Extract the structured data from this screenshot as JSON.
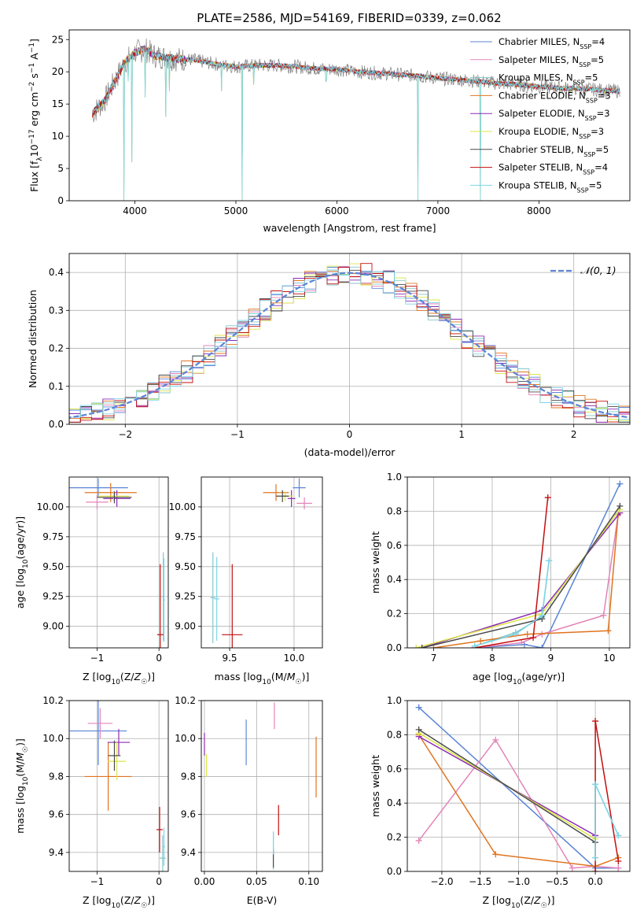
{
  "title": "PLATE=2586, MJD=54169, FIBERID=0339, z=0.062",
  "models": [
    {
      "name": "Chabrier MILES",
      "nssp": "4",
      "color": "#5b85d6"
    },
    {
      "name": "Salpeter MILES",
      "nssp": "5",
      "color": "#e384b8"
    },
    {
      "name": "Kroupa MILES",
      "nssp": "5",
      "color": "#86c5c8"
    },
    {
      "name": "Chabrier ELODIE",
      "nssp": "3",
      "color": "#e0741f"
    },
    {
      "name": "Salpeter ELODIE",
      "nssp": "3",
      "color": "#8b2bb5"
    },
    {
      "name": "Kroupa ELODIE",
      "nssp": "3",
      "color": "#dce64a"
    },
    {
      "name": "Chabrier STELIB",
      "nssp": "5",
      "color": "#4a4a4a"
    },
    {
      "name": "Salpeter STELIB",
      "nssp": "4",
      "color": "#c40e0e"
    },
    {
      "name": "Kroupa STELIB",
      "nssp": "5",
      "color": "#7dd5e8"
    }
  ],
  "chart_data": [
    {
      "id": "spectrum",
      "type": "line",
      "xlabel": "wavelength [Angstrom, rest frame]",
      "ylabel": "Flux [f_λ 10^-17 erg cm^-2 s^-1 A^-1]",
      "xlim": [
        3350,
        8900
      ],
      "ylim": [
        0,
        26.5
      ],
      "xticks": [
        4000,
        5000,
        6000,
        7000,
        8000
      ],
      "yticks": [
        0,
        5,
        10,
        15,
        20,
        25
      ],
      "data_color": "#808080",
      "continuum": [
        [
          3580,
          13.5
        ],
        [
          3700,
          15.5
        ],
        [
          3800,
          18.5
        ],
        [
          3900,
          21.5
        ],
        [
          4000,
          23
        ],
        [
          4100,
          23.5
        ],
        [
          4200,
          22.5
        ],
        [
          4400,
          22
        ],
        [
          4600,
          21.8
        ],
        [
          4800,
          21.2
        ],
        [
          5000,
          20.8
        ],
        [
          5200,
          21
        ],
        [
          5400,
          21
        ],
        [
          5600,
          20.8
        ],
        [
          5800,
          20.5
        ],
        [
          6000,
          20.4
        ],
        [
          6200,
          20
        ],
        [
          6400,
          19.8
        ],
        [
          6600,
          19.6
        ],
        [
          6800,
          19.4
        ],
        [
          7000,
          19
        ],
        [
          7200,
          18.8
        ],
        [
          7400,
          18.5
        ],
        [
          7600,
          18.2
        ],
        [
          7800,
          18
        ],
        [
          8000,
          17.7
        ],
        [
          8200,
          17.5
        ],
        [
          8400,
          17.4
        ],
        [
          8600,
          17.2
        ],
        [
          8800,
          17
        ]
      ],
      "absorption": [
        [
          3890,
          0
        ],
        [
          3935,
          18.5
        ],
        [
          3970,
          6
        ],
        [
          4100,
          16
        ],
        [
          4305,
          13
        ],
        [
          4340,
          17
        ],
        [
          4860,
          17
        ],
        [
          5060,
          0
        ],
        [
          5175,
          18
        ],
        [
          5893,
          18.5
        ],
        [
          6800,
          0
        ],
        [
          7420,
          0
        ]
      ],
      "grid": false,
      "legend": "top-right"
    },
    {
      "id": "residuals",
      "type": "step",
      "xlabel": "(data-model)/error",
      "ylabel": "Normed distribution",
      "xlim": [
        -2.5,
        2.5
      ],
      "ylim": [
        0,
        0.45
      ],
      "xticks": [
        -2,
        -1,
        0,
        1,
        2
      ],
      "yticks": [
        0.0,
        0.1,
        0.2,
        0.3,
        0.4
      ],
      "gaussian_label": "𝒩(0, 1)",
      "gaussian_color": "#5b85d6",
      "bin_width": 0.1,
      "grid": true,
      "legend": "top-right"
    },
    {
      "id": "age-Z",
      "type": "errorbar",
      "xlabel": "Z [log10(Z/Z☉)]",
      "ylabel": "age  [log10(age/yr)]",
      "xlim": [
        -1.45,
        0.15
      ],
      "ylim": [
        8.82,
        10.25
      ],
      "xticks": [
        -1,
        0
      ],
      "yticks": [
        9.0,
        9.25,
        9.5,
        9.75,
        10.0
      ],
      "points": [
        {
          "x": -0.98,
          "y": 10.16,
          "xerr": 0.48,
          "yerr": 0.08,
          "model": 0
        },
        {
          "x": -1.0,
          "y": 10.04,
          "xerr": 0.18,
          "yerr": 0.06,
          "model": 1
        },
        {
          "x": 0.07,
          "y": 9.25,
          "xerr": 0.02,
          "yerr": 0.37,
          "model": 2
        },
        {
          "x": -0.78,
          "y": 10.12,
          "xerr": 0.42,
          "yerr": 0.08,
          "model": 3
        },
        {
          "x": -0.68,
          "y": 10.07,
          "xerr": 0.22,
          "yerr": 0.07,
          "model": 4
        },
        {
          "x": -0.73,
          "y": 10.09,
          "xerr": 0.25,
          "yerr": 0.04,
          "model": 5
        },
        {
          "x": -0.72,
          "y": 10.08,
          "xerr": 0.28,
          "yerr": 0.05,
          "model": 6
        },
        {
          "x": 0.02,
          "y": 8.93,
          "xerr": 0.05,
          "yerr": 0.59,
          "model": 7
        },
        {
          "x": 0.08,
          "y": 9.22,
          "xerr": 0.02,
          "yerr": 0.35,
          "model": 8
        }
      ],
      "grid": true
    },
    {
      "id": "age-mass",
      "type": "errorbar",
      "xlabel": "mass [log10(M/M☉)]",
      "ylabel": "",
      "xlim": [
        9.28,
        10.22
      ],
      "ylim": [
        8.82,
        10.25
      ],
      "xticks": [
        9.5,
        10.0
      ],
      "yticks": [
        9.0,
        9.25,
        9.5,
        9.75,
        10.0
      ],
      "points": [
        {
          "x": 10.04,
          "y": 10.16,
          "xerr": 0.05,
          "yerr": 0.08,
          "model": 0
        },
        {
          "x": 10.08,
          "y": 10.03,
          "xerr": 0.06,
          "yerr": 0.05,
          "model": 1
        },
        {
          "x": 9.37,
          "y": 9.24,
          "xerr": 0.02,
          "yerr": 0.38,
          "model": 2
        },
        {
          "x": 9.86,
          "y": 10.12,
          "xerr": 0.1,
          "yerr": 0.07,
          "model": 3
        },
        {
          "x": 9.98,
          "y": 10.07,
          "xerr": 0.03,
          "yerr": 0.07,
          "model": 4
        },
        {
          "x": 9.93,
          "y": 10.09,
          "xerr": 0.06,
          "yerr": 0.04,
          "model": 5
        },
        {
          "x": 9.91,
          "y": 10.09,
          "xerr": 0.05,
          "yerr": 0.05,
          "model": 6
        },
        {
          "x": 9.52,
          "y": 8.93,
          "xerr": 0.08,
          "yerr": 0.59,
          "model": 7
        },
        {
          "x": 9.4,
          "y": 9.23,
          "xerr": 0.02,
          "yerr": 0.35,
          "model": 8
        }
      ],
      "grid": true
    },
    {
      "id": "weight-age",
      "type": "line",
      "xlabel": "age  [log10(age/yr)]",
      "ylabel": "mass weight",
      "xlim": [
        6.55,
        10.35
      ],
      "ylim": [
        0,
        1
      ],
      "xticks": [
        7,
        8,
        9,
        10
      ],
      "yticks": [
        0.0,
        0.2,
        0.4,
        0.6,
        0.8,
        1.0
      ],
      "series": [
        {
          "model": 0,
          "x": [
            7.7,
            8.55,
            8.85,
            10.18
          ],
          "y": [
            0.0,
            0.02,
            0.0,
            0.96
          ]
        },
        {
          "model": 1,
          "x": [
            7.7,
            8.5,
            8.85,
            9.9,
            10.15
          ],
          "y": [
            0.0,
            0.03,
            0.08,
            0.19,
            0.78
          ]
        },
        {
          "model": 2,
          "x": [
            7.7,
            8.4,
            8.85,
            8.97
          ],
          "y": [
            0.01,
            0.09,
            0.18,
            0.51
          ]
        },
        {
          "model": 3,
          "x": [
            7.0,
            7.8,
            8.6,
            9.98,
            10.15
          ],
          "y": [
            0.0,
            0.04,
            0.08,
            0.1,
            0.78
          ]
        },
        {
          "model": 4,
          "x": [
            6.8,
            8.85,
            10.18
          ],
          "y": [
            0.0,
            0.22,
            0.79
          ]
        },
        {
          "model": 5,
          "x": [
            6.7,
            8.85,
            10.18
          ],
          "y": [
            0.0,
            0.2,
            0.81
          ]
        },
        {
          "model": 6,
          "x": [
            6.8,
            8.85,
            10.18
          ],
          "y": [
            0.0,
            0.17,
            0.83
          ]
        },
        {
          "model": 7,
          "x": [
            7.7,
            8.7,
            8.95
          ],
          "y": [
            0.0,
            0.06,
            0.88
          ]
        },
        {
          "model": 8,
          "x": [
            7.7,
            8.4,
            8.85,
            8.97
          ],
          "y": [
            0.01,
            0.08,
            0.19,
            0.51
          ]
        }
      ],
      "grid": true
    },
    {
      "id": "mass-Z",
      "type": "errorbar",
      "xlabel": "Z [log10(Z/Z☉)]",
      "ylabel": "mass [log10(M/M☉)]",
      "xlim": [
        -1.45,
        0.15
      ],
      "ylim": [
        9.3,
        10.2
      ],
      "xticks": [
        -1,
        0
      ],
      "yticks": [
        9.4,
        9.6,
        9.8,
        10.0,
        10.2
      ],
      "points": [
        {
          "x": -0.98,
          "y": 10.04,
          "xerr": 0.46,
          "yerr": 0.18,
          "model": 0
        },
        {
          "x": -0.95,
          "y": 10.08,
          "xerr": 0.2,
          "yerr": 0.08,
          "model": 1
        },
        {
          "x": 0.06,
          "y": 9.37,
          "xerr": 0.05,
          "yerr": 0.12,
          "model": 2
        },
        {
          "x": -0.82,
          "y": 9.8,
          "xerr": 0.38,
          "yerr": 0.18,
          "model": 3
        },
        {
          "x": -0.65,
          "y": 9.98,
          "xerr": 0.18,
          "yerr": 0.07,
          "model": 4
        },
        {
          "x": -0.68,
          "y": 9.88,
          "xerr": 0.15,
          "yerr": 0.1,
          "model": 5
        },
        {
          "x": -0.72,
          "y": 9.91,
          "xerr": 0.1,
          "yerr": 0.08,
          "model": 6
        },
        {
          "x": 0.01,
          "y": 9.52,
          "xerr": 0.05,
          "yerr": 0.12,
          "model": 7
        },
        {
          "x": 0.08,
          "y": 9.43,
          "xerr": 0.02,
          "yerr": 0.1,
          "model": 8
        }
      ],
      "grid": true
    },
    {
      "id": "mass-EBV",
      "type": "errorbar",
      "xlabel": "E(B-V)",
      "ylabel": "",
      "xlim": [
        -0.003,
        0.113
      ],
      "ylim": [
        9.3,
        10.2
      ],
      "xticks": [
        0.0,
        0.05,
        0.1
      ],
      "yticks": [
        9.4,
        9.6,
        9.8,
        10.0,
        10.2
      ],
      "points": [
        {
          "x": 0.04,
          "y": 9.98,
          "yerr": 0.12,
          "model": 0
        },
        {
          "x": 0.067,
          "y": 10.12,
          "yerr": 0.07,
          "model": 1
        },
        {
          "x": 0.066,
          "y": 9.41,
          "yerr": 0.1,
          "model": 2
        },
        {
          "x": 0.107,
          "y": 9.85,
          "yerr": 0.16,
          "model": 3
        },
        {
          "x": 0.0,
          "y": 9.97,
          "yerr": 0.06,
          "model": 4
        },
        {
          "x": 0.002,
          "y": 9.86,
          "yerr": 0.06,
          "model": 5
        },
        {
          "x": 0.066,
          "y": 9.37,
          "yerr": 0.05,
          "model": 6
        },
        {
          "x": 0.071,
          "y": 9.57,
          "yerr": 0.08,
          "model": 7
        },
        {
          "x": 0.066,
          "y": 9.45,
          "yerr": 0.06,
          "model": 8
        }
      ],
      "grid": true
    },
    {
      "id": "weight-Z",
      "type": "line",
      "xlabel": "Z [log10(Z/Z☉)]",
      "ylabel": "mass weight",
      "xlim": [
        -2.45,
        0.45
      ],
      "ylim": [
        0,
        1
      ],
      "xticks": [
        -2.0,
        -1.5,
        -1.0,
        -0.5,
        0.0
      ],
      "yticks": [
        0.0,
        0.2,
        0.4,
        0.6,
        0.8,
        1.0
      ],
      "series": [
        {
          "model": 0,
          "x": [
            -2.3,
            0.0,
            0.3
          ],
          "y": [
            0.96,
            0.02,
            0.02
          ]
        },
        {
          "model": 1,
          "x": [
            -2.3,
            -1.3,
            -0.3,
            0.0,
            0.3
          ],
          "y": [
            0.18,
            0.77,
            0.02,
            0.03,
            0.02
          ]
        },
        {
          "model": 2,
          "x": [
            0.0,
            0.0,
            0.3
          ],
          "y": [
            0.08,
            0.51,
            0.21
          ]
        },
        {
          "model": 3,
          "x": [
            -2.3,
            -1.3,
            0.0,
            0.3
          ],
          "y": [
            0.8,
            0.1,
            0.03,
            0.08
          ]
        },
        {
          "model": 4,
          "x": [
            -2.3,
            0.0
          ],
          "y": [
            0.79,
            0.21
          ]
        },
        {
          "model": 5,
          "x": [
            -2.3,
            0.0
          ],
          "y": [
            0.81,
            0.19
          ]
        },
        {
          "model": 6,
          "x": [
            -2.3,
            0.0
          ],
          "y": [
            0.83,
            0.17
          ]
        },
        {
          "model": 7,
          "x": [
            0.0,
            0.0,
            0.3
          ],
          "y": [
            0.0,
            0.88,
            0.06
          ]
        },
        {
          "model": 8,
          "x": [
            0.0,
            0.0,
            0.3
          ],
          "y": [
            0.08,
            0.51,
            0.21
          ]
        }
      ],
      "grid": true
    }
  ]
}
